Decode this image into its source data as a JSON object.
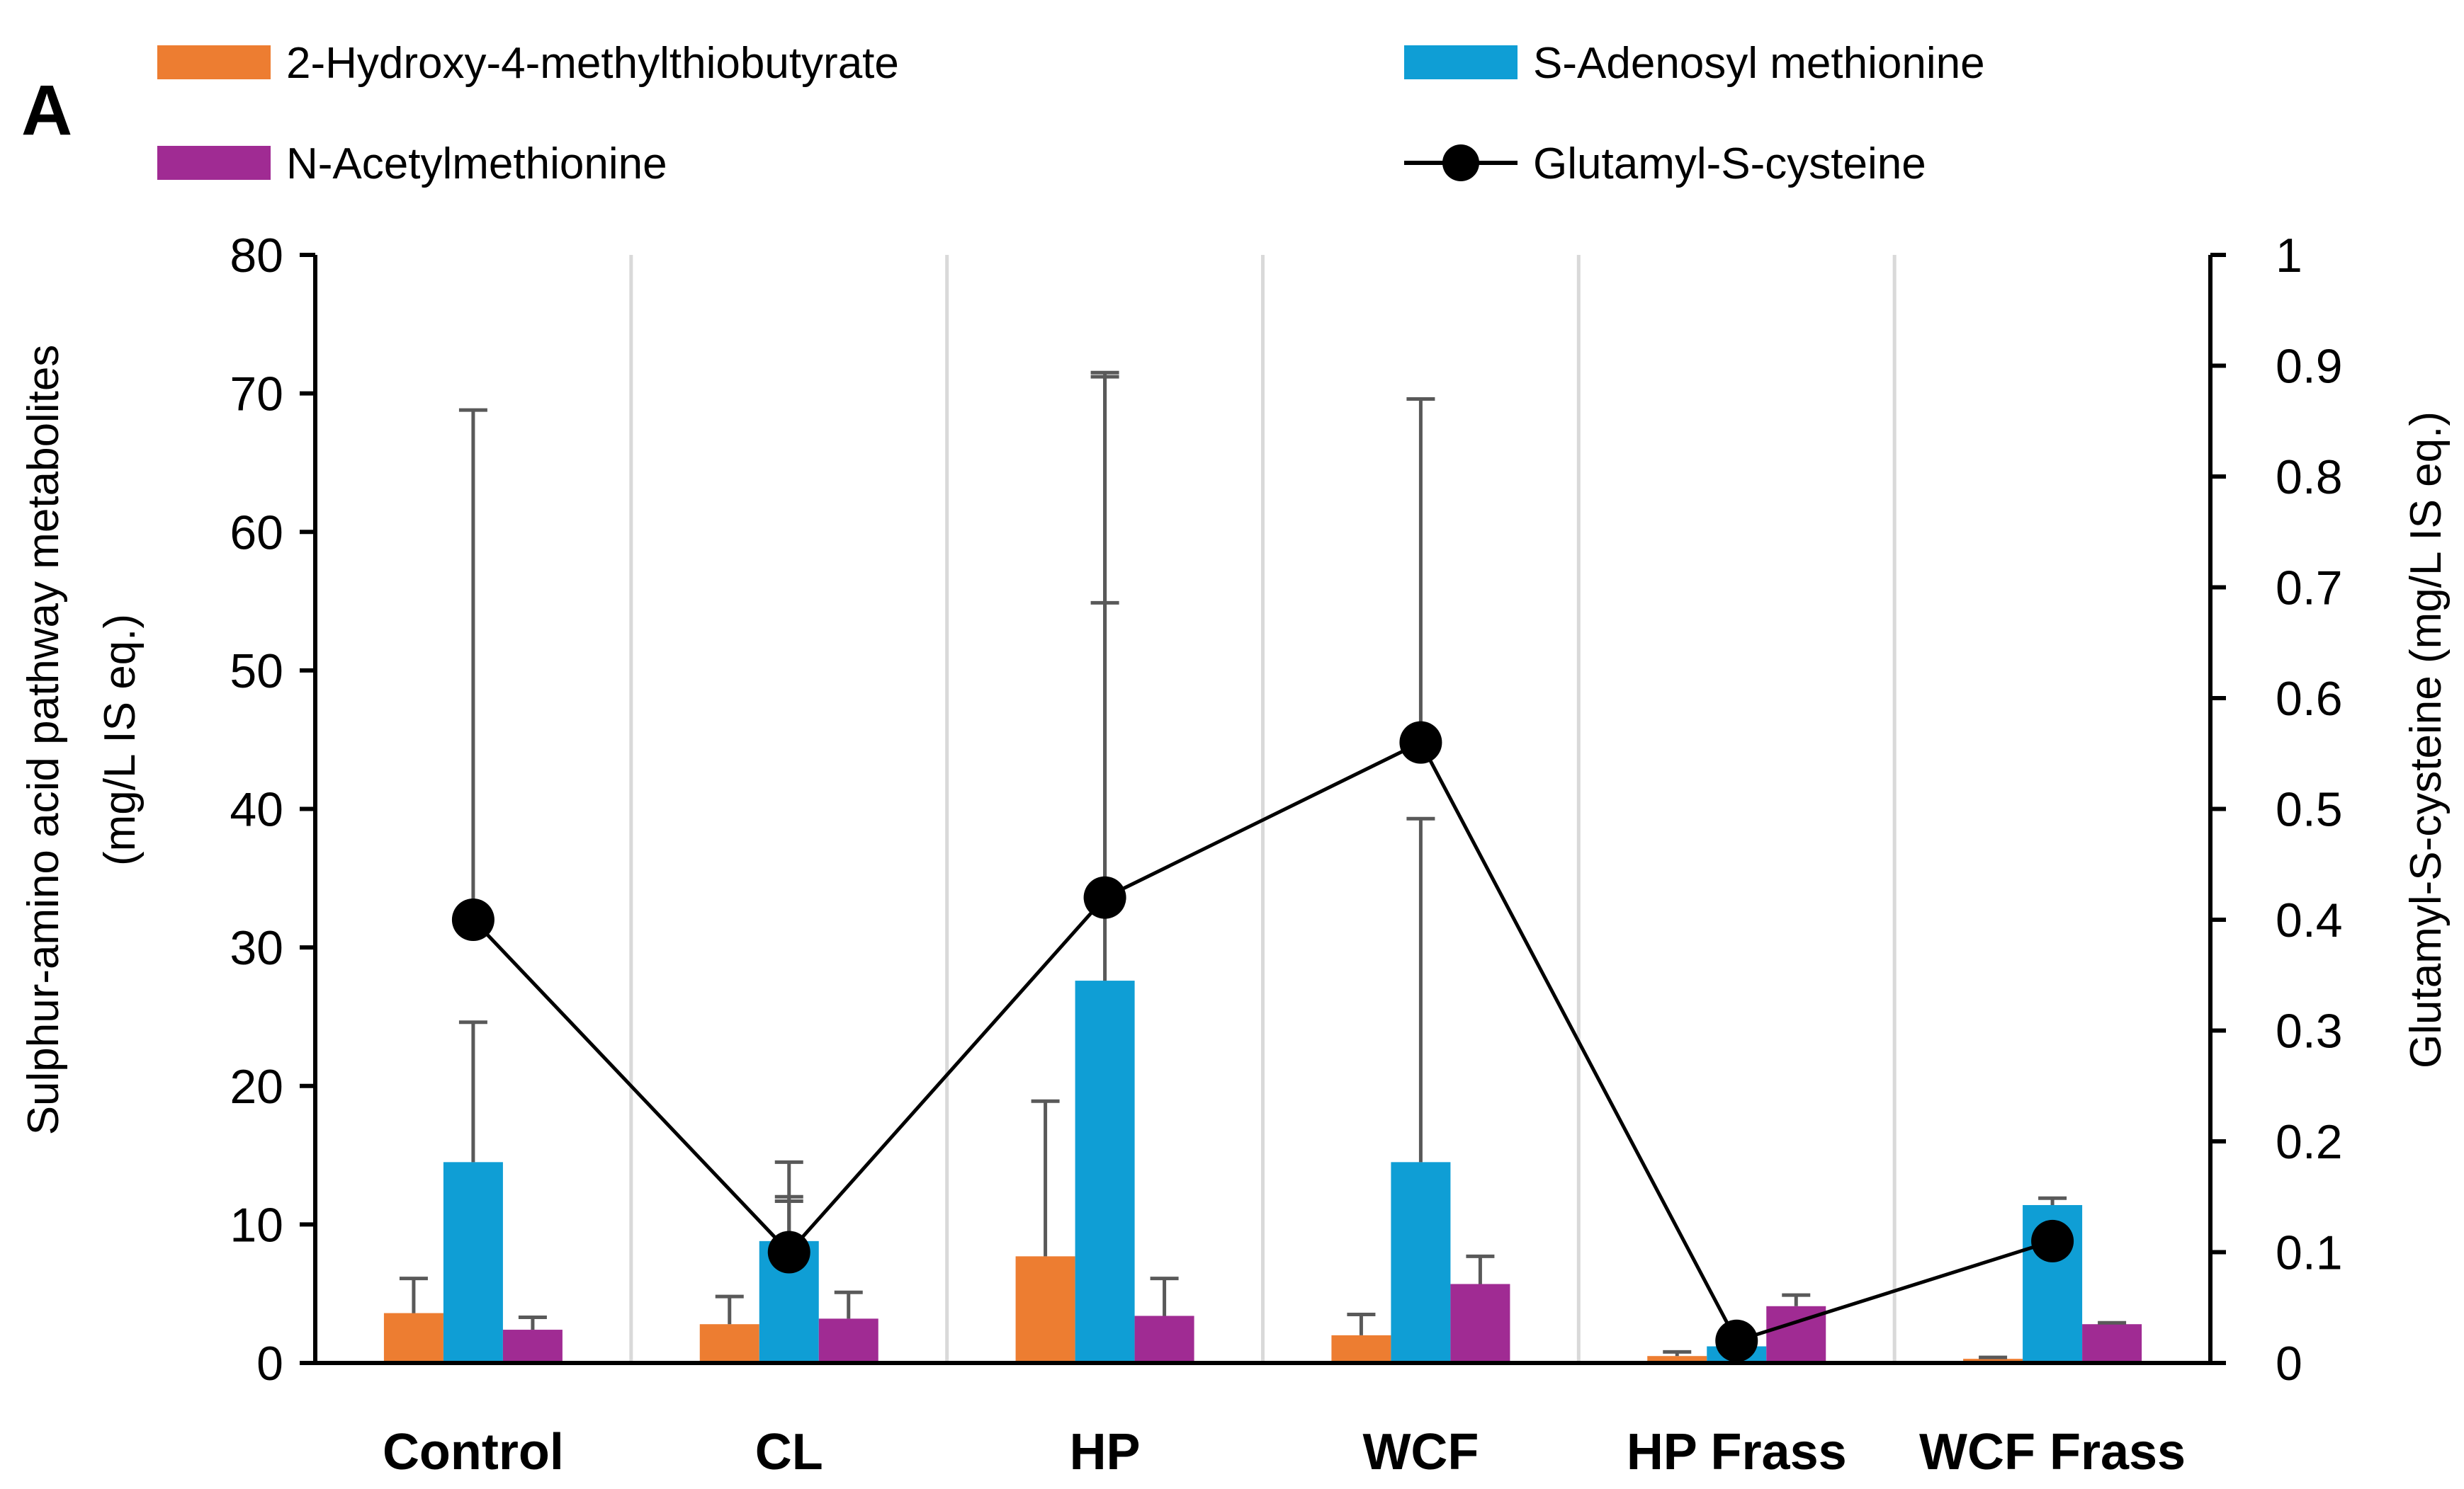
{
  "panel_label": "A",
  "chart_data": {
    "type": "bar",
    "categories": [
      "Control",
      "CL",
      "HP",
      "WCF",
      "HP Frass",
      "WCF Frass"
    ],
    "y_left": {
      "label_line1": "Sulphur-amino acid pathway metabolites",
      "label_line2": "(mg/L IS eq.)",
      "lim": [
        0,
        80
      ],
      "ticks": [
        "0",
        "10",
        "20",
        "30",
        "40",
        "50",
        "60",
        "70",
        "80"
      ]
    },
    "y_right": {
      "label": "Glutamyl-S-cysteine (mg/L IS eq.)",
      "lim": [
        0,
        1
      ],
      "ticks": [
        "0",
        "0.1",
        "0.2",
        "0.3",
        "0.4",
        "0.5",
        "0.6",
        "0.7",
        "0.8",
        "0.9",
        "1"
      ]
    },
    "bar_series": [
      {
        "name": "2-Hydroxy-4-methylthiobutyrate",
        "color": "#ED7D31",
        "values": [
          3.6,
          2.8,
          7.7,
          2.0,
          0.5,
          0.3
        ],
        "err_upper": [
          6.1,
          4.8,
          18.9,
          3.5,
          0.8,
          0.4
        ]
      },
      {
        "name": "S-Adenosyl methionine",
        "color": "#0F9ED5",
        "values": [
          14.5,
          8.8,
          27.6,
          14.5,
          1.2,
          11.4
        ],
        "err_upper": [
          24.6,
          14.5,
          71.5,
          39.3,
          1.6,
          11.9
        ]
      },
      {
        "name": "N-Acetylmethionine",
        "color": "#A02B93",
        "values": [
          2.4,
          3.2,
          3.4,
          5.7,
          4.1,
          2.8
        ],
        "err_upper": [
          3.3,
          5.1,
          6.1,
          7.7,
          4.9,
          2.9
        ]
      }
    ],
    "line_series": {
      "name": "Glutamyl-S-cysteine",
      "color": "#000000",
      "values": [
        0.4,
        0.1,
        0.42,
        0.56,
        0.02,
        0.11
      ],
      "err_upper": [
        0.86,
        0.15,
        0.89,
        0.87,
        0.02,
        0.11
      ],
      "err_mid": [
        null,
        0.146,
        0.686,
        null,
        null,
        null
      ]
    },
    "grid": "vertical separators between categories",
    "legend_position": "top"
  }
}
